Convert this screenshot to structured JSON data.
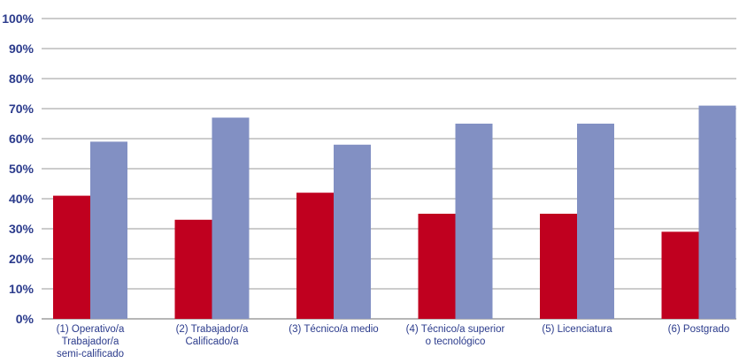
{
  "chart_data": {
    "type": "bar",
    "categories": [
      [
        "(1) Operativo/a",
        "Trabajador/a",
        "semi-calificado"
      ],
      [
        "(2) Trabajador/a",
        "Calificado/a"
      ],
      [
        "(3) Técnico/a medio"
      ],
      [
        "(4) Técnico/a superior",
        "o tecnológico"
      ],
      [
        "(5) Licenciatura"
      ],
      [
        "(6) Postgrado"
      ]
    ],
    "series": [
      {
        "color": "#c0001f",
        "values": [
          41,
          33,
          42,
          35,
          35,
          29
        ]
      },
      {
        "color": "#8290c3",
        "values": [
          59,
          67,
          58,
          65,
          65,
          71
        ]
      }
    ],
    "ylim": [
      0,
      100
    ],
    "yticks": [
      "0%",
      "10%",
      "20%",
      "30%",
      "40%",
      "50%",
      "60%",
      "70%",
      "80%",
      "90%",
      "100%"
    ],
    "grid": true,
    "legend": "none"
  }
}
